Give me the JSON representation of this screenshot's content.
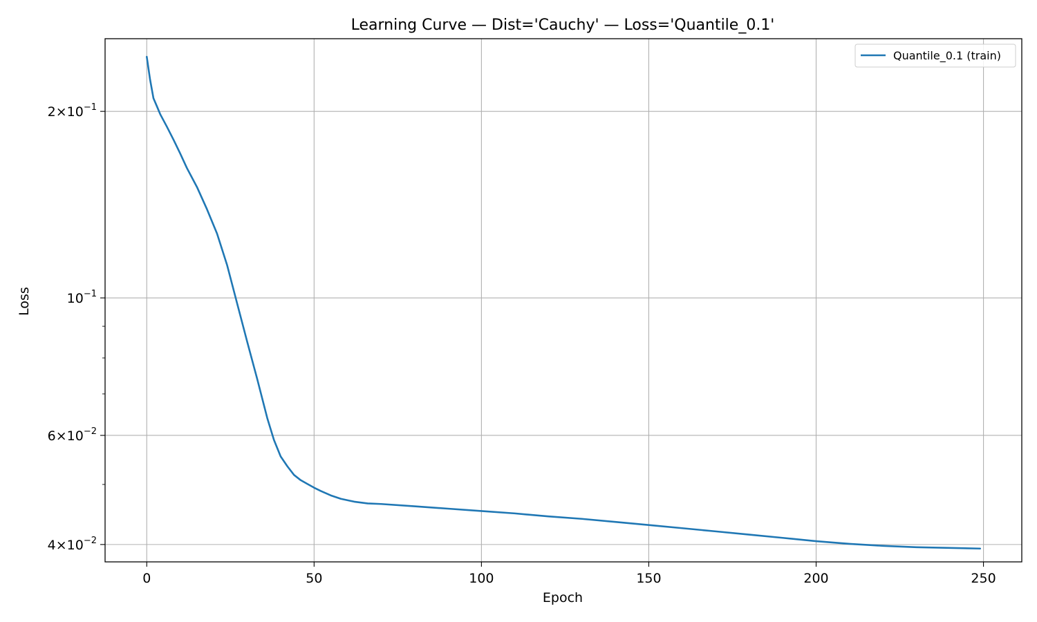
{
  "chart_data": {
    "type": "line",
    "title": "Learning Curve — Dist='Cauchy' — Loss='Quantile_0.1'",
    "xlabel": "Epoch",
    "ylabel": "Loss",
    "xlim": [
      -12.45,
      261.45
    ],
    "ylim": [
      0.0375,
      0.262
    ],
    "yscale": "log",
    "grid": true,
    "legend_position": "upper-right",
    "x_ticks": [
      {
        "value": 0,
        "label": "0"
      },
      {
        "value": 50,
        "label": "50"
      },
      {
        "value": 100,
        "label": "100"
      },
      {
        "value": 150,
        "label": "150"
      },
      {
        "value": 200,
        "label": "200"
      },
      {
        "value": 250,
        "label": "250"
      }
    ],
    "y_ticks": [
      {
        "value": 0.04,
        "base": "4×10",
        "exp": "−2"
      },
      {
        "value": 0.06,
        "base": "6×10",
        "exp": "−2"
      },
      {
        "value": 0.1,
        "base": "10",
        "exp": "−1"
      },
      {
        "value": 0.2,
        "base": "2×10",
        "exp": "−1"
      }
    ],
    "y_minor_ticks": [
      0.05,
      0.07,
      0.08,
      0.09,
      0.3
    ],
    "series": [
      {
        "name": "Quantile_0.1 (train)",
        "color": "#1f77b4",
        "points": [
          [
            0,
            0.245
          ],
          [
            1,
            0.225
          ],
          [
            2,
            0.21
          ],
          [
            3,
            0.204
          ],
          [
            4,
            0.198
          ],
          [
            6,
            0.189
          ],
          [
            8,
            0.18
          ],
          [
            10,
            0.171
          ],
          [
            12,
            0.162
          ],
          [
            15,
            0.151
          ],
          [
            18,
            0.139
          ],
          [
            21,
            0.127
          ],
          [
            24,
            0.113
          ],
          [
            27,
            0.098
          ],
          [
            30,
            0.085
          ],
          [
            33,
            0.074
          ],
          [
            36,
            0.064
          ],
          [
            38,
            0.059
          ],
          [
            40,
            0.0555
          ],
          [
            42,
            0.0535
          ],
          [
            44,
            0.0518
          ],
          [
            46,
            0.0508
          ],
          [
            48,
            0.0501
          ],
          [
            50,
            0.0494
          ],
          [
            52,
            0.0488
          ],
          [
            55,
            0.048
          ],
          [
            58,
            0.0474
          ],
          [
            62,
            0.0469
          ],
          [
            66,
            0.0466
          ],
          [
            70,
            0.0465
          ],
          [
            80,
            0.0461
          ],
          [
            90,
            0.0457
          ],
          [
            100,
            0.0453
          ],
          [
            110,
            0.0449
          ],
          [
            120,
            0.0444
          ],
          [
            130,
            0.044
          ],
          [
            140,
            0.0435
          ],
          [
            150,
            0.043
          ],
          [
            160,
            0.0425
          ],
          [
            170,
            0.042
          ],
          [
            180,
            0.0415
          ],
          [
            190,
            0.041
          ],
          [
            200,
            0.0405
          ],
          [
            210,
            0.0401
          ],
          [
            220,
            0.0398
          ],
          [
            230,
            0.0396
          ],
          [
            240,
            0.0395
          ],
          [
            249,
            0.0394
          ]
        ]
      }
    ]
  }
}
